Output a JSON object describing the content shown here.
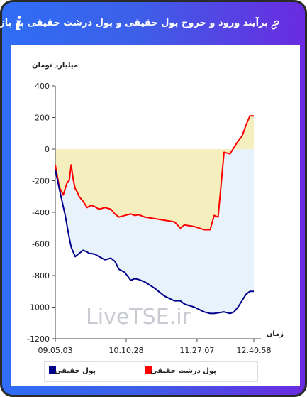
{
  "header": {
    "title": "برآیند ورود و خروج پول حقیقی و پول درشت حقیقی به بازار",
    "info_icon": "i",
    "link_icon": "link-icon"
  },
  "watermark": "LiveTSE.ir",
  "chart_data": {
    "type": "line",
    "ylabel": "میلیارد تومان",
    "xlabel": "زمان",
    "ylim": [
      -1200,
      400
    ],
    "y_ticks": [
      "400",
      "200",
      "0",
      "-200",
      "-400",
      "-600",
      "-800",
      "-1000",
      "-1200"
    ],
    "x_ticks": [
      "09.05.03",
      "10.10.28",
      "11.27.07",
      "12.40.58"
    ],
    "grid": false,
    "legend_position": "bottom",
    "colors": {
      "real_money": "#00008b",
      "big_real_money": "#ff0000",
      "fill_above_zero_gap": "#f5efc0",
      "fill_below_zero": "#e8f2fb"
    },
    "series": [
      {
        "name": "پول حقیقی",
        "key": "real_money",
        "x": [
          0,
          0.02,
          0.05,
          0.07,
          0.08,
          0.1,
          0.12,
          0.14,
          0.16,
          0.17,
          0.18,
          0.2,
          0.22,
          0.25,
          0.28,
          0.3,
          0.32,
          0.35,
          0.38,
          0.4,
          0.42,
          0.45,
          0.5,
          0.55,
          0.6,
          0.63,
          0.65,
          0.7,
          0.75,
          0.78,
          0.8,
          0.85,
          0.88,
          0.9,
          0.92,
          0.94,
          0.96,
          0.98,
          1
        ],
        "y": [
          -130,
          -250,
          -420,
          -560,
          -620,
          -680,
          -660,
          -640,
          -650,
          -660,
          -660,
          -665,
          -680,
          -700,
          -690,
          -710,
          -760,
          -780,
          -830,
          -820,
          -825,
          -840,
          -880,
          -930,
          -960,
          -960,
          -980,
          -1000,
          -1030,
          -1040,
          -1040,
          -1030,
          -1040,
          -1030,
          -1000,
          -960,
          -920,
          -900,
          -900
        ]
      },
      {
        "name": "پول درشت حقیقی",
        "key": "big_real_money",
        "x": [
          0,
          0.02,
          0.04,
          0.06,
          0.07,
          0.08,
          0.09,
          0.1,
          0.11,
          0.12,
          0.14,
          0.16,
          0.18,
          0.2,
          0.22,
          0.25,
          0.28,
          0.3,
          0.32,
          0.35,
          0.38,
          0.4,
          0.42,
          0.45,
          0.5,
          0.55,
          0.6,
          0.63,
          0.65,
          0.7,
          0.75,
          0.78,
          0.8,
          0.82,
          0.85,
          0.88,
          0.9,
          0.92,
          0.94,
          0.96,
          0.98,
          1
        ],
        "y": [
          -100,
          -240,
          -290,
          -210,
          -200,
          -100,
          -190,
          -250,
          -270,
          -300,
          -330,
          -370,
          -355,
          -365,
          -380,
          -370,
          -380,
          -410,
          -430,
          -420,
          -410,
          -420,
          -415,
          -430,
          -440,
          -450,
          -460,
          -500,
          -480,
          -490,
          -510,
          -510,
          -420,
          -430,
          -20,
          -30,
          10,
          50,
          80,
          150,
          210,
          210
        ]
      }
    ]
  }
}
